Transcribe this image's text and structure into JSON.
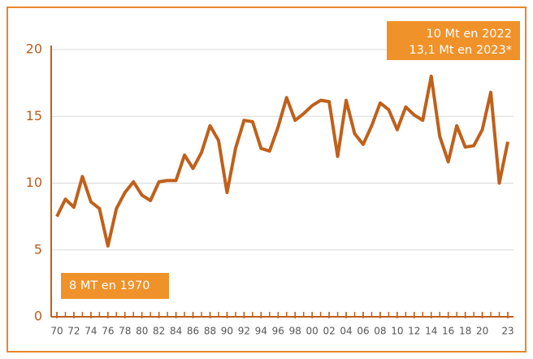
{
  "chart_data": {
    "type": "line",
    "x": [
      1970,
      1971,
      1972,
      1973,
      1974,
      1975,
      1976,
      1977,
      1978,
      1979,
      1980,
      1981,
      1982,
      1983,
      1984,
      1985,
      1986,
      1987,
      1988,
      1989,
      1990,
      1991,
      1992,
      1993,
      1994,
      1995,
      1996,
      1997,
      1998,
      1999,
      2000,
      2001,
      2002,
      2003,
      2004,
      2005,
      2006,
      2007,
      2008,
      2009,
      2010,
      2011,
      2012,
      2013,
      2014,
      2015,
      2016,
      2017,
      2018,
      2019,
      2020,
      2021,
      2022,
      2023
    ],
    "values": [
      7.5,
      8.8,
      8.2,
      10.5,
      8.6,
      8.1,
      5.3,
      8.1,
      9.3,
      10.1,
      9.1,
      8.7,
      10.1,
      10.2,
      10.2,
      12.1,
      11.1,
      12.3,
      14.3,
      13.2,
      9.3,
      12.6,
      14.7,
      14.6,
      12.6,
      12.4,
      14.2,
      16.4,
      14.7,
      15.2,
      15.8,
      16.2,
      16.1,
      12.0,
      16.2,
      13.7,
      12.9,
      14.3,
      16.0,
      15.5,
      14.0,
      15.7,
      15.1,
      14.7,
      18.0,
      13.5,
      11.6,
      14.3,
      12.7,
      12.8,
      14.0,
      16.8,
      10.0,
      13.1
    ],
    "color": "#c0601a",
    "xlim": [
      1970,
      2023
    ],
    "xticks": [
      {
        "value": 1970,
        "label": "70"
      },
      {
        "value": 1972,
        "label": "72"
      },
      {
        "value": 1974,
        "label": "74"
      },
      {
        "value": 1976,
        "label": "76"
      },
      {
        "value": 1978,
        "label": "78"
      },
      {
        "value": 1980,
        "label": "80"
      },
      {
        "value": 1982,
        "label": "82"
      },
      {
        "value": 1984,
        "label": "84"
      },
      {
        "value": 1986,
        "label": "86"
      },
      {
        "value": 1988,
        "label": "88"
      },
      {
        "value": 1990,
        "label": "90"
      },
      {
        "value": 1992,
        "label": "92"
      },
      {
        "value": 1994,
        "label": "94"
      },
      {
        "value": 1996,
        "label": "96"
      },
      {
        "value": 1998,
        "label": "98"
      },
      {
        "value": 2000,
        "label": "00"
      },
      {
        "value": 2002,
        "label": "02"
      },
      {
        "value": 2004,
        "label": "04"
      },
      {
        "value": 2006,
        "label": "06"
      },
      {
        "value": 2008,
        "label": "08"
      },
      {
        "value": 2010,
        "label": "10"
      },
      {
        "value": 2012,
        "label": "12"
      },
      {
        "value": 2014,
        "label": "14"
      },
      {
        "value": 2016,
        "label": "16"
      },
      {
        "value": 2018,
        "label": "18"
      },
      {
        "value": 2020,
        "label": "20"
      },
      {
        "value": 2023,
        "label": "23"
      }
    ],
    "ylim": [
      0,
      20
    ],
    "yticks": [
      0,
      5,
      10,
      15,
      20
    ],
    "grid": true,
    "annotations": [
      "10 Mt en 2022",
      "13,1 Mt en 2023*",
      "8 MT en 1970"
    ]
  }
}
